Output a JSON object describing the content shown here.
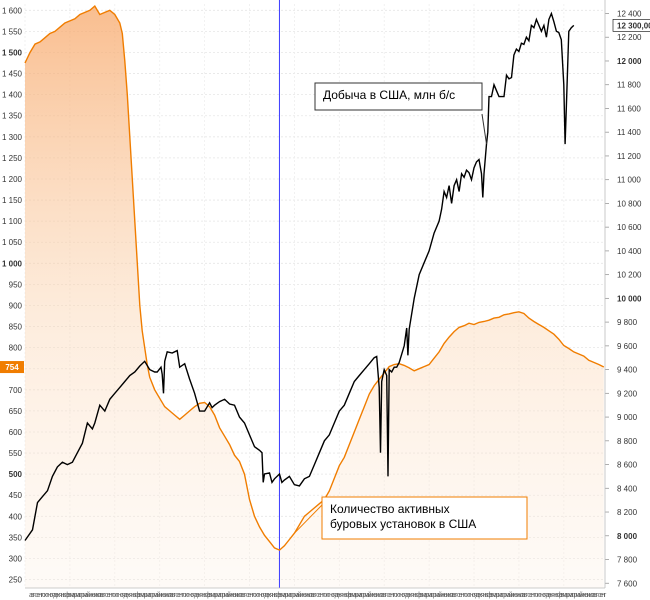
{
  "chart_data": {
    "type": "line",
    "title": "",
    "xlabel": "",
    "grid": true,
    "vertical_marker": {
      "x_index": 204
    },
    "left_axis": {
      "ylim": [
        230,
        1615
      ],
      "ticks": [
        250,
        300,
        350,
        400,
        450,
        500,
        550,
        600,
        650,
        700,
        750,
        800,
        850,
        900,
        950,
        1000,
        1050,
        1100,
        1150,
        1200,
        1250,
        1300,
        1350,
        1400,
        1450,
        1500,
        1550,
        1600
      ],
      "tick_labels": [
        "250",
        "300",
        "350",
        "400",
        "450",
        "500",
        "550",
        "600",
        "650",
        "700",
        "750",
        "800",
        "850",
        "900",
        "950",
        "1 000",
        "1 050",
        "1 100",
        "1 150",
        "1 200",
        "1 250",
        "1 300",
        "1 350",
        "1 400",
        "1 450",
        "1 500",
        "1 550",
        "1 600"
      ],
      "bold_ticks": [
        500,
        1000,
        1500
      ],
      "current_label": "754",
      "current_value": 754,
      "current_color": "#f07d00"
    },
    "right_axis": {
      "ylim": [
        7560,
        12480
      ],
      "ticks": [
        7600,
        7800,
        8000,
        8200,
        8400,
        8600,
        8800,
        9000,
        9200,
        9400,
        9600,
        9800,
        10000,
        10200,
        10400,
        10600,
        10800,
        11000,
        11200,
        11400,
        11600,
        11800,
        12000,
        12200,
        12400
      ],
      "tick_labels": [
        "7 600",
        "7 800",
        "8 000",
        "8 200",
        "8 400",
        "8 600",
        "8 800",
        "9 000",
        "9 200",
        "9 400",
        "9 600",
        "9 800",
        "10 000",
        "10 200",
        "10 400",
        "10 600",
        "10 800",
        "11 000",
        "11 200",
        "11 400",
        "11 600",
        "11 800",
        "12 000",
        "12 200",
        "12 400"
      ],
      "bold_ticks": [
        8000,
        10000,
        12000
      ],
      "current_label": "12 300,00",
      "current_value": 12300,
      "current_color": "#000000"
    },
    "x_month_letters": "авгсентоктноядекянвфевмармапрмайиюниюлавгсентоктноядекянвфевмармапрмайиюниюлавгсентоктноядекянвфевмармапрмайиюниюлавгсентоктноядекянвфевмармапрмайиюниюлавгсентоктноядекянвфевмармапрмайиюниюлавгсентоктноядекянвфевмармапрмайиюниюлавгсентоктноядекянвфевмармапрмайиюниюлавгсентоктноядекянвфевмармапрмайиюниюлавгсент",
    "series": [
      {
        "name": "Добыча в США, млн б/с",
        "axis": "right",
        "color": "#000000",
        "points": [
          [
            0,
            7960
          ],
          [
            6,
            8050
          ],
          [
            10,
            8280
          ],
          [
            14,
            8330
          ],
          [
            18,
            8380
          ],
          [
            22,
            8500
          ],
          [
            26,
            8580
          ],
          [
            30,
            8620
          ],
          [
            34,
            8600
          ],
          [
            38,
            8620
          ],
          [
            42,
            8700
          ],
          [
            46,
            8780
          ],
          [
            50,
            8950
          ],
          [
            54,
            8900
          ],
          [
            56,
            8950
          ],
          [
            60,
            9100
          ],
          [
            64,
            9050
          ],
          [
            68,
            9150
          ],
          [
            72,
            9200
          ],
          [
            76,
            9250
          ],
          [
            80,
            9300
          ],
          [
            84,
            9350
          ],
          [
            88,
            9380
          ],
          [
            92,
            9430
          ],
          [
            96,
            9470
          ],
          [
            100,
            9400
          ],
          [
            104,
            9380
          ],
          [
            106,
            9380
          ],
          [
            109,
            9420
          ],
          [
            110,
            9360
          ],
          [
            111,
            9200
          ],
          [
            112,
            9470
          ],
          [
            114,
            9550
          ],
          [
            118,
            9540
          ],
          [
            122,
            9560
          ],
          [
            124,
            9420
          ],
          [
            128,
            9450
          ],
          [
            132,
            9320
          ],
          [
            136,
            9200
          ],
          [
            140,
            9050
          ],
          [
            144,
            9050
          ],
          [
            148,
            9120
          ],
          [
            150,
            9080
          ],
          [
            152,
            9100
          ],
          [
            156,
            9130
          ],
          [
            160,
            9150
          ],
          [
            164,
            9110
          ],
          [
            168,
            9100
          ],
          [
            172,
            9000
          ],
          [
            176,
            8950
          ],
          [
            180,
            8850
          ],
          [
            184,
            8750
          ],
          [
            188,
            8720
          ],
          [
            190,
            8700
          ],
          [
            191,
            8450
          ],
          [
            192,
            8520
          ],
          [
            196,
            8530
          ],
          [
            198,
            8450
          ],
          [
            200,
            8480
          ],
          [
            204,
            8520
          ],
          [
            206,
            8450
          ],
          [
            208,
            8470
          ],
          [
            212,
            8500
          ],
          [
            216,
            8430
          ],
          [
            220,
            8420
          ],
          [
            224,
            8480
          ],
          [
            228,
            8500
          ],
          [
            232,
            8600
          ],
          [
            236,
            8700
          ],
          [
            240,
            8800
          ],
          [
            244,
            8850
          ],
          [
            248,
            8950
          ],
          [
            252,
            9050
          ],
          [
            256,
            9100
          ],
          [
            260,
            9200
          ],
          [
            264,
            9300
          ],
          [
            268,
            9350
          ],
          [
            272,
            9400
          ],
          [
            276,
            9450
          ],
          [
            280,
            9500
          ],
          [
            282,
            9510
          ],
          [
            284,
            9250
          ],
          [
            285,
            8700
          ],
          [
            286,
            9300
          ],
          [
            288,
            9400
          ],
          [
            290,
            9350
          ],
          [
            291,
            8500
          ],
          [
            292,
            9400
          ],
          [
            294,
            9380
          ],
          [
            296,
            9420
          ],
          [
            298,
            9420
          ],
          [
            300,
            9460
          ],
          [
            304,
            9600
          ],
          [
            306,
            9750
          ],
          [
            307,
            9520
          ],
          [
            308,
            9740
          ],
          [
            312,
            10000
          ],
          [
            316,
            10200
          ],
          [
            320,
            10300
          ],
          [
            324,
            10400
          ],
          [
            328,
            10550
          ],
          [
            332,
            10650
          ],
          [
            334,
            10750
          ],
          [
            336,
            10900
          ],
          [
            338,
            10850
          ],
          [
            340,
            10950
          ],
          [
            342,
            10800
          ],
          [
            344,
            10950
          ],
          [
            346,
            11000
          ],
          [
            348,
            10900
          ],
          [
            350,
            11050
          ],
          [
            352,
            11020
          ],
          [
            354,
            11080
          ],
          [
            356,
            11060
          ],
          [
            358,
            11000
          ],
          [
            360,
            11100
          ],
          [
            362,
            11150
          ],
          [
            364,
            11170
          ],
          [
            366,
            11050
          ],
          [
            367,
            10850
          ],
          [
            368,
            11050
          ],
          [
            370,
            11300
          ],
          [
            371,
            11400
          ],
          [
            372,
            11700
          ],
          [
            374,
            11700
          ],
          [
            376,
            11800
          ],
          [
            378,
            11750
          ],
          [
            380,
            11700
          ],
          [
            384,
            11700
          ],
          [
            386,
            11880
          ],
          [
            388,
            11850
          ],
          [
            390,
            11860
          ],
          [
            392,
            12050
          ],
          [
            394,
            12100
          ],
          [
            396,
            12080
          ],
          [
            398,
            12150
          ],
          [
            400,
            12140
          ],
          [
            402,
            12200
          ],
          [
            404,
            12170
          ],
          [
            406,
            12300
          ],
          [
            408,
            12280
          ],
          [
            410,
            12350
          ],
          [
            412,
            12300
          ],
          [
            414,
            12250
          ],
          [
            416,
            12300
          ],
          [
            418,
            12200
          ],
          [
            420,
            12350
          ],
          [
            422,
            12400
          ],
          [
            424,
            12330
          ],
          [
            426,
            12250
          ],
          [
            428,
            12240
          ],
          [
            430,
            12180
          ],
          [
            432,
            11800
          ],
          [
            433,
            11300
          ],
          [
            434,
            11600
          ],
          [
            436,
            12250
          ],
          [
            438,
            12280
          ],
          [
            440,
            12300
          ]
        ]
      },
      {
        "name": "Количество активных буровых установок в США",
        "axis": "left",
        "color": "#f07d00",
        "points": [
          [
            0,
            1475
          ],
          [
            4,
            1500
          ],
          [
            8,
            1520
          ],
          [
            12,
            1525
          ],
          [
            16,
            1535
          ],
          [
            20,
            1545
          ],
          [
            24,
            1550
          ],
          [
            28,
            1560
          ],
          [
            32,
            1570
          ],
          [
            36,
            1575
          ],
          [
            40,
            1580
          ],
          [
            44,
            1590
          ],
          [
            48,
            1595
          ],
          [
            52,
            1600
          ],
          [
            56,
            1610
          ],
          [
            60,
            1590
          ],
          [
            64,
            1595
          ],
          [
            68,
            1600
          ],
          [
            72,
            1590
          ],
          [
            76,
            1570
          ],
          [
            78,
            1545
          ],
          [
            80,
            1480
          ],
          [
            82,
            1400
          ],
          [
            84,
            1300
          ],
          [
            86,
            1200
          ],
          [
            88,
            1100
          ],
          [
            90,
            1000
          ],
          [
            92,
            900
          ],
          [
            94,
            840
          ],
          [
            96,
            800
          ],
          [
            98,
            760
          ],
          [
            100,
            730
          ],
          [
            104,
            700
          ],
          [
            108,
            680
          ],
          [
            112,
            660
          ],
          [
            116,
            650
          ],
          [
            120,
            640
          ],
          [
            124,
            630
          ],
          [
            128,
            640
          ],
          [
            132,
            650
          ],
          [
            136,
            660
          ],
          [
            140,
            668
          ],
          [
            144,
            670
          ],
          [
            148,
            660
          ],
          [
            152,
            640
          ],
          [
            156,
            610
          ],
          [
            160,
            590
          ],
          [
            164,
            570
          ],
          [
            168,
            545
          ],
          [
            172,
            530
          ],
          [
            176,
            500
          ],
          [
            180,
            440
          ],
          [
            184,
            400
          ],
          [
            188,
            375
          ],
          [
            192,
            355
          ],
          [
            196,
            340
          ],
          [
            200,
            325
          ],
          [
            204,
            320
          ],
          [
            208,
            330
          ],
          [
            212,
            345
          ],
          [
            216,
            360
          ],
          [
            220,
            380
          ],
          [
            224,
            400
          ],
          [
            228,
            410
          ],
          [
            232,
            420
          ],
          [
            236,
            430
          ],
          [
            240,
            440
          ],
          [
            244,
            460
          ],
          [
            248,
            490
          ],
          [
            252,
            520
          ],
          [
            256,
            540
          ],
          [
            260,
            570
          ],
          [
            264,
            600
          ],
          [
            268,
            630
          ],
          [
            272,
            660
          ],
          [
            276,
            690
          ],
          [
            280,
            710
          ],
          [
            284,
            725
          ],
          [
            288,
            740
          ],
          [
            292,
            755
          ],
          [
            296,
            760
          ],
          [
            300,
            762
          ],
          [
            304,
            758
          ],
          [
            308,
            752
          ],
          [
            312,
            745
          ],
          [
            316,
            750
          ],
          [
            320,
            755
          ],
          [
            324,
            760
          ],
          [
            328,
            775
          ],
          [
            332,
            790
          ],
          [
            336,
            810
          ],
          [
            340,
            825
          ],
          [
            344,
            838
          ],
          [
            348,
            848
          ],
          [
            352,
            852
          ],
          [
            356,
            858
          ],
          [
            360,
            855
          ],
          [
            364,
            860
          ],
          [
            368,
            862
          ],
          [
            372,
            865
          ],
          [
            376,
            870
          ],
          [
            380,
            872
          ],
          [
            384,
            878
          ],
          [
            388,
            880
          ],
          [
            392,
            883
          ],
          [
            396,
            885
          ],
          [
            400,
            881
          ],
          [
            404,
            870
          ],
          [
            408,
            862
          ],
          [
            412,
            855
          ],
          [
            416,
            848
          ],
          [
            420,
            840
          ],
          [
            424,
            832
          ],
          [
            428,
            820
          ],
          [
            432,
            805
          ],
          [
            436,
            798
          ],
          [
            440,
            790
          ],
          [
            444,
            785
          ],
          [
            448,
            780
          ],
          [
            452,
            770
          ],
          [
            456,
            765
          ],
          [
            460,
            760
          ],
          [
            464,
            754
          ]
        ]
      }
    ],
    "annotations": [
      {
        "text": "Добыча в США, млн б/с",
        "series_index": 0,
        "anchor_index": 370,
        "box_color": "#333333"
      },
      {
        "text": "Количество активных буровых установок в США",
        "series_index": 1,
        "anchor_index": 216,
        "box_color": "#f07d00"
      }
    ]
  }
}
